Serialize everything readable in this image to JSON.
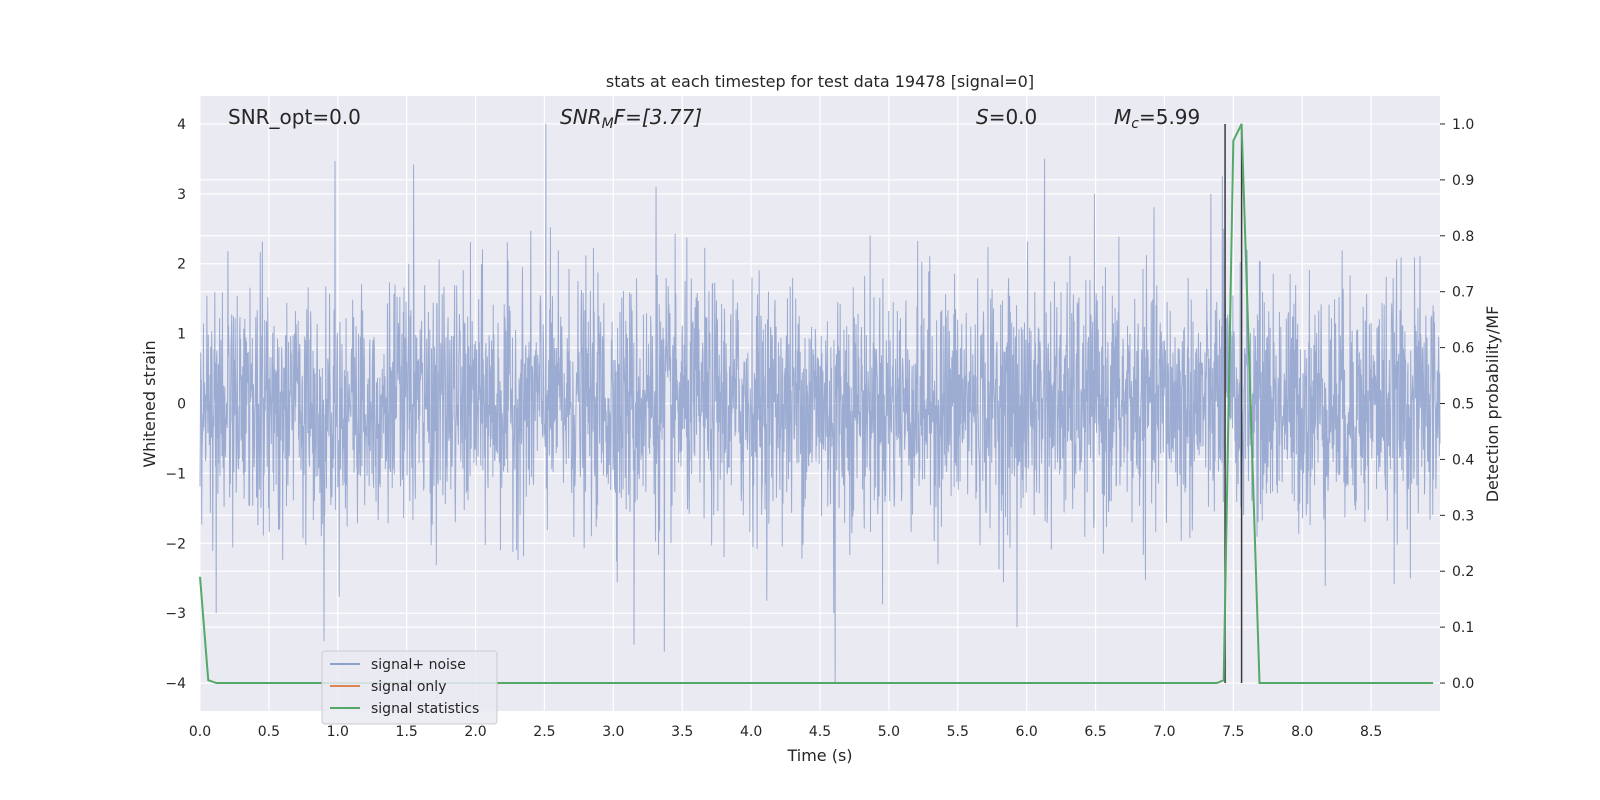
{
  "chart_data": {
    "type": "line",
    "title": "stats at each timestep for test data 19478 [signal=0]",
    "xlabel": "Time (s)",
    "ylabel": "Whitened strain",
    "ylabel_right": "Detection probability/MF",
    "xlim": [
      0.0,
      9.0
    ],
    "ylim": [
      -4.4,
      4.4
    ],
    "ylim_right": [
      -0.05,
      1.05
    ],
    "x_ticks": [
      "0.0",
      "0.5",
      "1.0",
      "1.5",
      "2.0",
      "2.5",
      "3.0",
      "3.5",
      "4.0",
      "4.5",
      "5.0",
      "5.5",
      "6.0",
      "6.5",
      "7.0",
      "7.5",
      "8.0",
      "8.5"
    ],
    "y_ticks": [
      "4",
      "3",
      "2",
      "1",
      "0",
      "−1",
      "−2",
      "−3",
      "−4"
    ],
    "y_right_ticks": [
      "1.0",
      "0.9",
      "0.8",
      "0.7",
      "0.6",
      "0.5",
      "0.4",
      "0.3",
      "0.2",
      "0.1",
      "0.0"
    ],
    "annotations": {
      "snr_opt": "SNR_opt=0.0",
      "snr_mf_main": "SNR",
      "snr_mf_sub": "M",
      "snr_mf_rest": "F=[3.77]",
      "s_stat_sym": "S",
      "s_stat_rest": "=0.0",
      "mc_sym": "M",
      "mc_sub": "c",
      "mc_rest": "=5.99"
    },
    "vertical_lines_x": [
      7.44,
      7.56
    ],
    "series": [
      {
        "name": "signal+ noise",
        "color": "#8da0cb",
        "style": "dense whitened noise, std ~0.85, spikes up to 4.0 at t=2.51 and down to -4.0 at t=4.61",
        "notable_points": [
          {
            "x": 0.98,
            "y": 3.47
          },
          {
            "x": 1.55,
            "y": 3.42
          },
          {
            "x": 2.51,
            "y": 4.0
          },
          {
            "x": 3.31,
            "y": 3.1
          },
          {
            "x": 6.13,
            "y": 3.5
          },
          {
            "x": 7.42,
            "y": 3.25
          },
          {
            "x": 0.9,
            "y": -3.4
          },
          {
            "x": 3.15,
            "y": -3.45
          },
          {
            "x": 3.37,
            "y": -3.55
          },
          {
            "x": 4.6,
            "y": -3.0
          },
          {
            "x": 4.61,
            "y": -4.0
          },
          {
            "x": 5.93,
            "y": -3.2
          },
          {
            "x": 7.43,
            "y": 2.5
          },
          {
            "x": 7.6,
            "y": 2.2
          }
        ]
      },
      {
        "name": "signal only",
        "color": "#dd8452",
        "values": []
      },
      {
        "name": "signal statistics",
        "color": "#55a868",
        "axis": "right",
        "points": [
          [
            0.0,
            0.19
          ],
          [
            0.06,
            0.005
          ],
          [
            0.12,
            0.0
          ],
          [
            7.38,
            0.0
          ],
          [
            7.43,
            0.005
          ],
          [
            7.5,
            0.97
          ],
          [
            7.56,
            1.0
          ],
          [
            7.69,
            0.0
          ],
          [
            8.95,
            0.0
          ]
        ]
      }
    ],
    "legend": {
      "location": "lower-left",
      "entries": [
        "signal+ noise",
        "signal only",
        "signal statistics"
      ]
    }
  }
}
